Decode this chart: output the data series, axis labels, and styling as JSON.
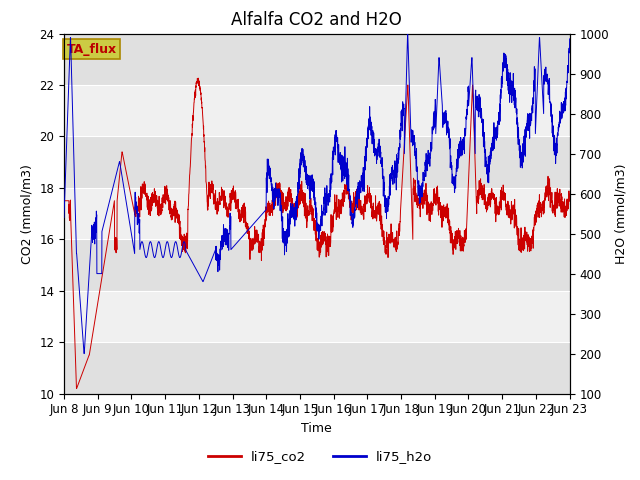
{
  "title": "Alfalfa CO2 and H2O",
  "xlabel": "Time",
  "ylabel_left": "CO2 (mmol/m3)",
  "ylabel_right": "H2O (mmol/m3)",
  "co2_ylim": [
    10,
    24
  ],
  "h2o_ylim": [
    100,
    1000
  ],
  "co2_yticks": [
    10,
    12,
    14,
    16,
    18,
    20,
    22,
    24
  ],
  "h2o_yticks": [
    100,
    200,
    300,
    400,
    500,
    600,
    700,
    800,
    900,
    1000
  ],
  "xtick_labels": [
    "Jun 8",
    "Jun 9",
    "Jun 10",
    "Jun 11",
    "Jun 12",
    "Jun 13",
    "Jun 14",
    "Jun 15",
    "Jun 16",
    "Jun 17",
    "Jun 18",
    "Jun 19",
    "Jun 20",
    "Jun 21",
    "Jun 22",
    "Jun 23"
  ],
  "co2_color": "#cc0000",
  "h2o_color": "#0000cc",
  "legend_label_co2": "li75_co2",
  "legend_label_h2o": "li75_h2o",
  "annotation_text": "TA_flux",
  "annotation_bg": "#cccc44",
  "annotation_border": "#aa8800",
  "plot_bg": "#f0f0f0",
  "band_dark": "#e0e0e0",
  "band_light": "#f0f0f0",
  "grid_color": "#ffffff",
  "title_fontsize": 12,
  "label_fontsize": 9,
  "tick_fontsize": 8.5
}
